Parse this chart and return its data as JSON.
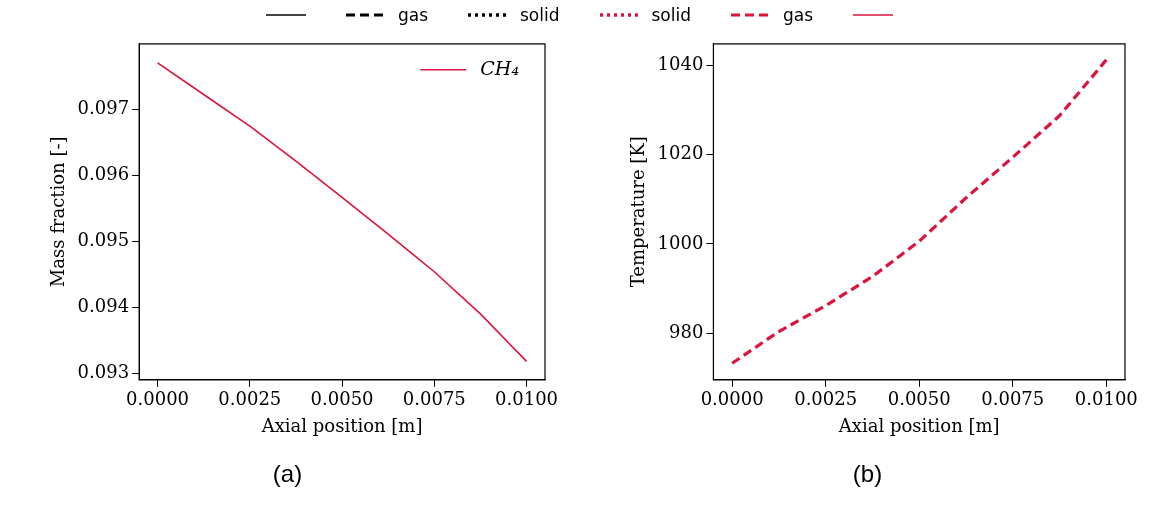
{
  "chart_data": [
    {
      "type": "line",
      "xlabel": "Axial position [m]",
      "ylabel": "Mass fraction [-]",
      "x": [
        0,
        0.00125,
        0.0025,
        0.00375,
        0.005,
        0.00625,
        0.0075,
        0.00875,
        0.01
      ],
      "series": [
        {
          "name": "CH₄",
          "color": "#dc143c",
          "line_style": "solid",
          "values": [
            0.09771,
            0.09723,
            0.09675,
            0.09622,
            0.09567,
            0.09511,
            0.09454,
            0.0939,
            0.09318
          ]
        }
      ],
      "xlim": [
        -0.0005,
        0.0105
      ],
      "ylim": [
        0.0929,
        0.098
      ],
      "xticks": [
        {
          "value": 0,
          "label": "0.0000"
        },
        {
          "value": 0.0025,
          "label": "0.0025"
        },
        {
          "value": 0.005,
          "label": "0.0050"
        },
        {
          "value": 0.0075,
          "label": "0.0075"
        },
        {
          "value": 0.01,
          "label": "0.0100"
        }
      ],
      "yticks": [
        0.093,
        0.094,
        0.095,
        0.096,
        0.097
      ],
      "legend": "top right",
      "annotations": [
        "(a)"
      ]
    },
    {
      "type": "line",
      "xlabel": "Axial position [m]",
      "ylabel": "Temperature [K]",
      "x": [
        0,
        0.00125,
        0.0025,
        0.00375,
        0.005,
        0.00625,
        0.0075,
        0.00875,
        0.01
      ],
      "series": [
        {
          "color": "#000000",
          "line_style": "solid",
          "values": [
            null,
            null,
            null,
            null,
            null,
            null,
            null,
            null,
            null
          ]
        },
        {
          "name": "gas",
          "color": "#000000",
          "line_style": "dashed",
          "values": [
            null,
            null,
            null,
            null,
            null,
            null,
            null,
            null,
            null
          ]
        },
        {
          "name": "solid",
          "color": "#000000",
          "line_style": "dotted",
          "values": [
            null,
            null,
            null,
            null,
            null,
            null,
            null,
            null,
            null
          ]
        },
        {
          "name": "solid",
          "color": "#dc143c",
          "line_style": "dotted",
          "values": [
            null,
            null,
            null,
            null,
            null,
            null,
            null,
            null,
            null
          ]
        },
        {
          "name": "gas",
          "color": "#dc143c",
          "line_style": "dashed",
          "values": [
            973.3,
            980.4,
            986.2,
            992.7,
            1000.6,
            1010.3,
            1019.4,
            1028.7,
            1041.2
          ]
        },
        {
          "color": "#dc143c",
          "line_style": "solid",
          "values": [
            null,
            null,
            null,
            null,
            null,
            null,
            null,
            null,
            null
          ]
        }
      ],
      "xlim": [
        -0.0005,
        0.0105
      ],
      "ylim": [
        969.6,
        1044.8
      ],
      "xticks": [
        {
          "value": 0,
          "label": "0.0000"
        },
        {
          "value": 0.0025,
          "label": "0.0025"
        },
        {
          "value": 0.005,
          "label": "0.0050"
        },
        {
          "value": 0.0075,
          "label": "0.0075"
        },
        {
          "value": 0.01,
          "label": "0.0100"
        }
      ],
      "yticks": [
        980,
        1000,
        1020,
        1040
      ],
      "legend": "top",
      "annotations": [
        "(b)"
      ]
    }
  ]
}
